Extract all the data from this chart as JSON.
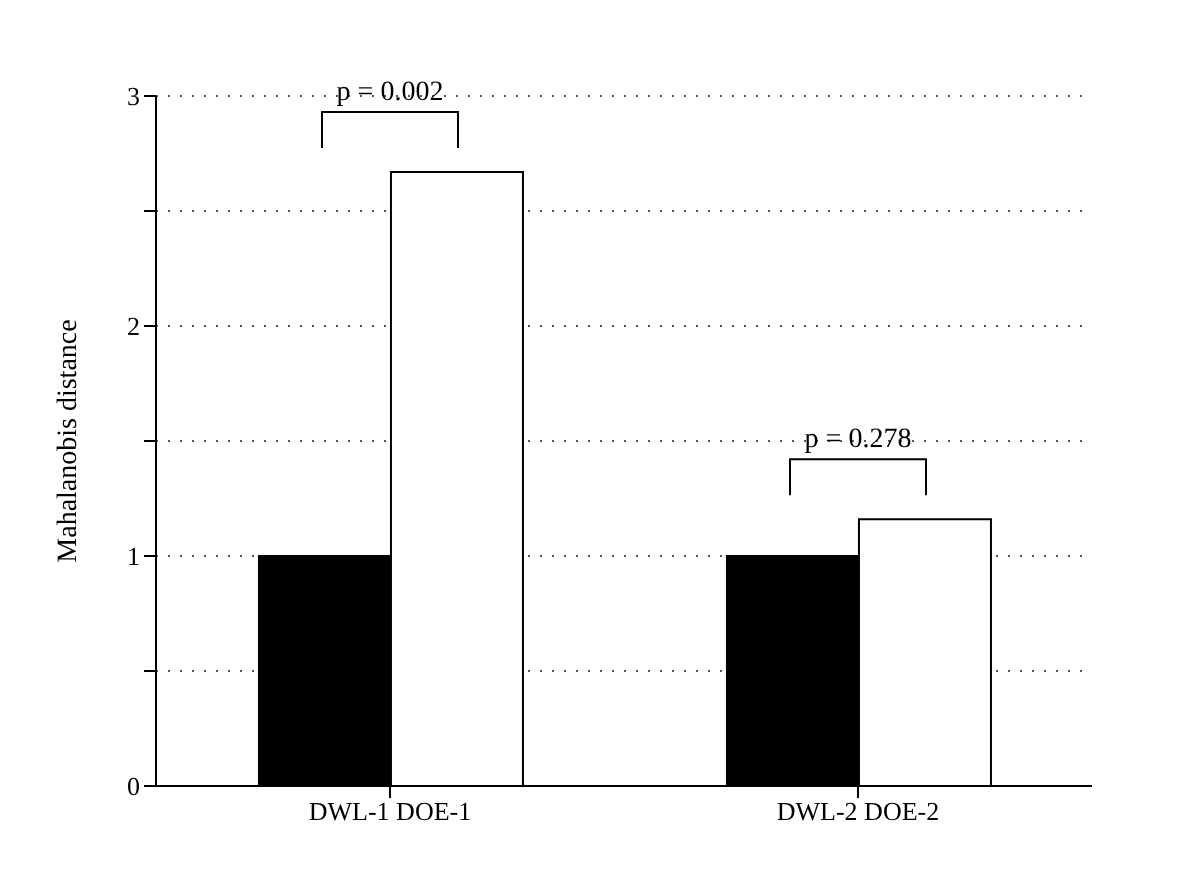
{
  "chart_data": {
    "type": "bar",
    "ylabel": "Mahalanobis distance",
    "categories": [
      "DWL-1 DOE-1",
      "DWL-2 DOE-2"
    ],
    "series": [
      {
        "color": "#000000",
        "values": [
          1.0,
          1.0
        ]
      },
      {
        "color": "#ffffff",
        "values": [
          2.67,
          1.16
        ]
      }
    ],
    "ylim": [
      0,
      3
    ],
    "yticks": [
      0,
      {
        "value": 0.5,
        "label": null
      },
      1,
      {
        "value": 1.5,
        "label": null
      },
      2,
      {
        "value": 2.5,
        "label": null
      },
      3
    ],
    "grid": "y",
    "legend": false,
    "annotations": [
      "p = 0.002",
      "p = 0.278"
    ]
  }
}
